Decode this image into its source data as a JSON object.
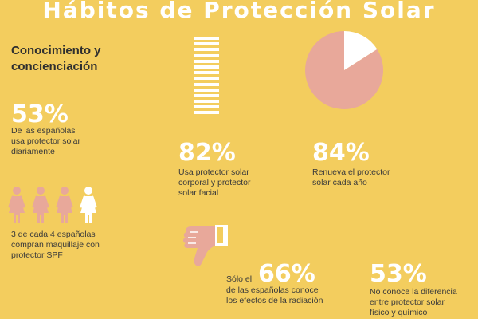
{
  "title": "Hábitos de Protección Solar",
  "subtitle": [
    "Conocimiento y",
    "concienciación"
  ],
  "stat1": {
    "value": "53%",
    "text": [
      "De las españolas",
      "usa protector solar",
      "diariamente"
    ]
  },
  "stat2": {
    "value": "82%",
    "text": [
      "Usa protector solar",
      "corporal y protector",
      "solar facial"
    ]
  },
  "stat3": {
    "value": "84%",
    "text": [
      "Renueva el protector",
      "solar cada año"
    ]
  },
  "stat4": {
    "text": [
      "3 de cada 4 españolas",
      "compran maquillaje con",
      "protector SPF"
    ]
  },
  "stat5": {
    "prefix": "Sólo el",
    "value": "66%",
    "text": [
      "de las españolas conoce",
      "los efectos de la radiación"
    ]
  },
  "stat6": {
    "value": "53%",
    "text": [
      "No conoce la diferencia",
      "entre protector solar",
      "físico y químico"
    ]
  },
  "colors": {
    "background": "#f3cd5e",
    "pink": "#e8a89a",
    "white": "#ffffff",
    "text": "#3a3a3a"
  },
  "women_icons": {
    "count": 4,
    "highlighted": 3
  },
  "pie": {
    "percent": 84
  },
  "bars_icon": {
    "count": 14
  }
}
